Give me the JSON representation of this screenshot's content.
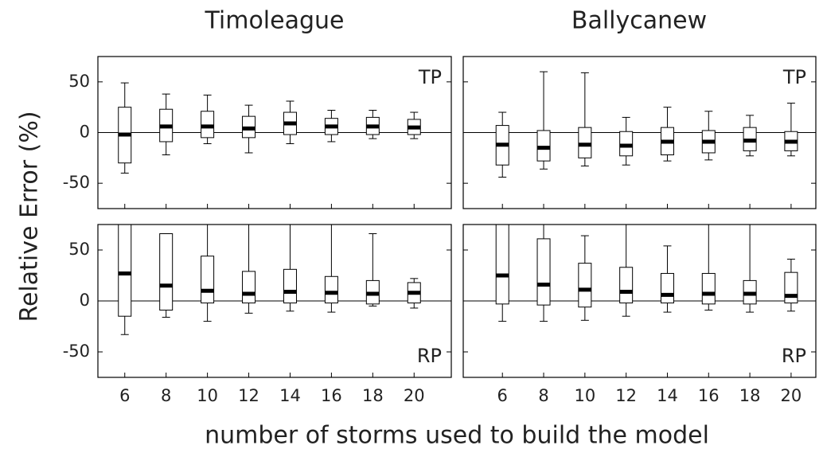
{
  "column_titles": [
    "Timoleague",
    "Ballycanew"
  ],
  "ylabel": "Relative Error (%)",
  "xlabel": "number of storms used to build the model",
  "chart_data": [
    {
      "type": "box",
      "label": "TP",
      "label_corner": "top-right",
      "color": "#000000",
      "zero_line": true,
      "x": [
        6,
        8,
        10,
        12,
        14,
        16,
        18,
        20
      ],
      "whisker_low": [
        -40,
        -22,
        -11,
        -20,
        -11,
        -9,
        -6,
        -6
      ],
      "q1": [
        -30,
        -9,
        -5,
        -5,
        -2,
        -2,
        -2,
        -2
      ],
      "median": [
        -2,
        6,
        6,
        4,
        9,
        6,
        6,
        5
      ],
      "q3": [
        25,
        23,
        21,
        16,
        20,
        14,
        15,
        13
      ],
      "whisker_high": [
        49,
        38,
        37,
        27,
        31,
        22,
        22,
        20
      ],
      "xlim": [
        4.7,
        21.8
      ],
      "xticks": [
        6,
        8,
        10,
        12,
        14,
        16,
        18,
        20
      ],
      "ylim": [
        -75,
        75
      ],
      "yticks": [
        -50,
        0,
        50
      ]
    },
    {
      "type": "box",
      "label": "TP",
      "label_corner": "top-right",
      "color": "#000000",
      "zero_line": true,
      "x": [
        6,
        8,
        10,
        12,
        14,
        16,
        18,
        20
      ],
      "whisker_low": [
        -44,
        -36,
        -33,
        -32,
        -28,
        -27,
        -23,
        -23
      ],
      "q1": [
        -32,
        -28,
        -25,
        -23,
        -22,
        -20,
        -18,
        -18
      ],
      "median": [
        -12,
        -15,
        -12,
        -13,
        -9,
        -9,
        -8,
        -9
      ],
      "q3": [
        7,
        2,
        5,
        1,
        5,
        2,
        5,
        1
      ],
      "whisker_high": [
        20,
        60,
        59,
        15,
        25,
        21,
        17,
        29
      ],
      "xlim": [
        4.1,
        21.2
      ],
      "xticks": [
        6,
        8,
        10,
        12,
        14,
        16,
        18,
        20
      ],
      "ylim": [
        -75,
        75
      ],
      "yticks": [
        -50,
        0,
        50
      ]
    },
    {
      "type": "box",
      "label": "RP",
      "label_corner": "bottom-right",
      "color": "#000000",
      "zero_line": true,
      "x": [
        6,
        8,
        10,
        12,
        14,
        16,
        18,
        20
      ],
      "whisker_low": [
        -33,
        -16,
        -20,
        -12,
        -10,
        -11,
        -5,
        -7
      ],
      "q1": [
        -15,
        -9,
        -2,
        -2,
        -2,
        -2,
        -3,
        -2
      ],
      "median": [
        27,
        15,
        10,
        7,
        9,
        8,
        7,
        8
      ],
      "q3": [
        80,
        66,
        44,
        29,
        31,
        24,
        20,
        18
      ],
      "whisker_high": [
        120,
        66,
        80,
        80,
        80,
        80,
        66,
        22
      ],
      "xlim": [
        4.7,
        21.8
      ],
      "xticks": [
        6,
        8,
        10,
        12,
        14,
        16,
        18,
        20
      ],
      "ylim": [
        -75,
        75
      ],
      "yticks": [
        -50,
        0,
        50
      ]
    },
    {
      "type": "box",
      "label": "RP",
      "label_corner": "bottom-right",
      "color": "#000000",
      "zero_line": true,
      "x": [
        6,
        8,
        10,
        12,
        14,
        16,
        18,
        20
      ],
      "whisker_low": [
        -20,
        -20,
        -19,
        -15,
        -11,
        -9,
        -11,
        -10
      ],
      "q1": [
        -3,
        -4,
        -6,
        -2,
        -2,
        -3,
        -3,
        -2
      ],
      "median": [
        25,
        16,
        11,
        9,
        6,
        7,
        7,
        5
      ],
      "q3": [
        80,
        61,
        37,
        33,
        27,
        27,
        20,
        28
      ],
      "whisker_high": [
        80,
        80,
        64,
        80,
        54,
        80,
        80,
        41
      ],
      "xlim": [
        4.1,
        21.2
      ],
      "xticks": [
        6,
        8,
        10,
        12,
        14,
        16,
        18,
        20
      ],
      "ylim": [
        -75,
        75
      ],
      "yticks": [
        -50,
        0,
        50
      ]
    }
  ]
}
